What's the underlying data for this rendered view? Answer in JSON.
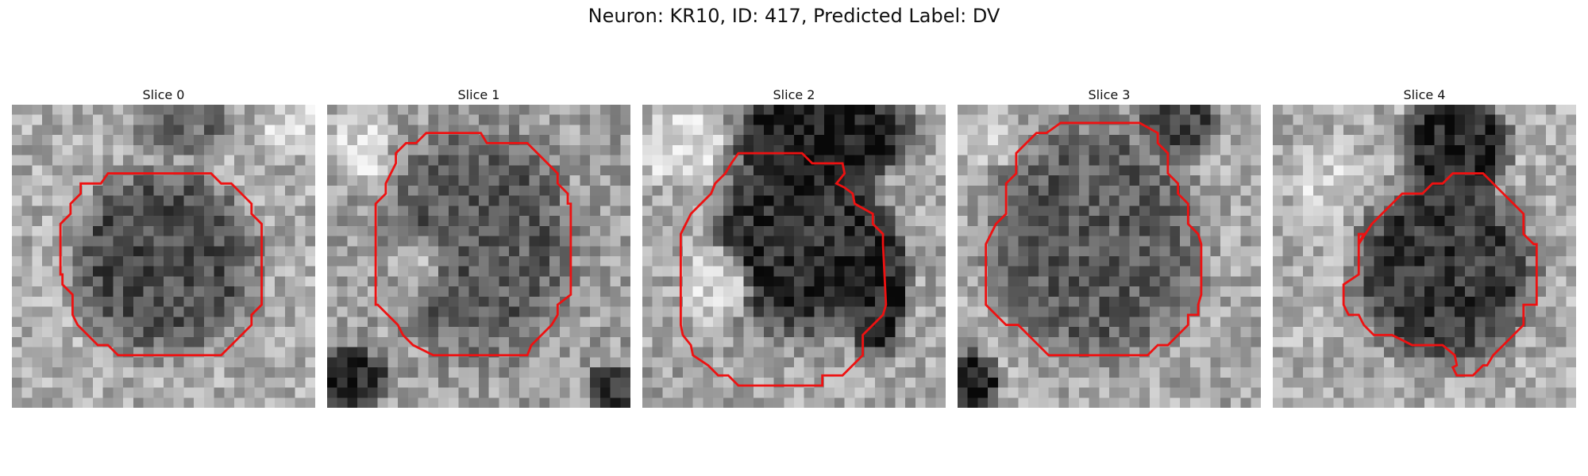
{
  "figure": {
    "title": "Neuron: KR10, ID: 417, Predicted Label: DV"
  },
  "slices": [
    {
      "label": "Slice 0"
    },
    {
      "label": "Slice 1"
    },
    {
      "label": "Slice 2"
    },
    {
      "label": "Slice 3"
    },
    {
      "label": "Slice 4"
    }
  ],
  "contour_color": "#ee1111"
}
